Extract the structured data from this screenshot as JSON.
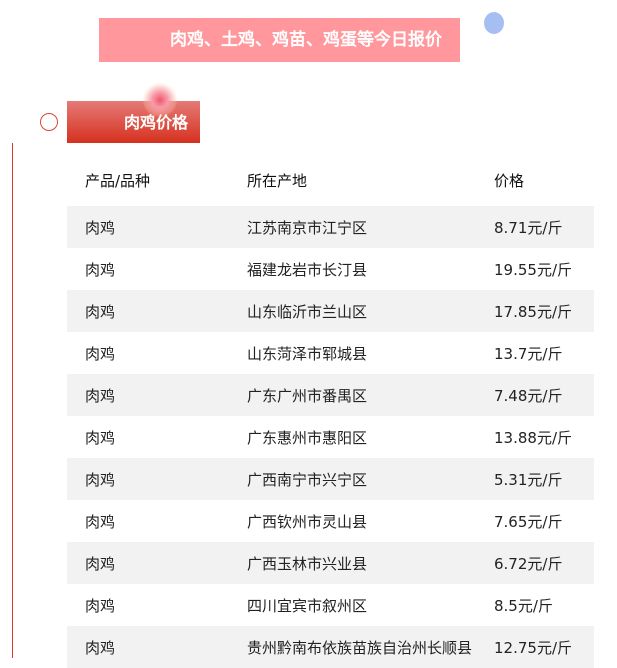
{
  "banner": {
    "title": "肉鸡、土鸡、鸡苗、鸡蛋等今日报价"
  },
  "section": {
    "title": "肉鸡价格"
  },
  "table": {
    "headers": [
      "产品/品种",
      "所在产地",
      "价格"
    ],
    "rows": [
      [
        "肉鸡",
        "江苏南京市江宁区",
        "8.71元/斤"
      ],
      [
        "肉鸡",
        "福建龙岩市长汀县",
        "19.55元/斤"
      ],
      [
        "肉鸡",
        "山东临沂市兰山区",
        "17.85元/斤"
      ],
      [
        "肉鸡",
        "山东菏泽市郓城县",
        "13.7元/斤"
      ],
      [
        "肉鸡",
        "广东广州市番禺区",
        "7.48元/斤"
      ],
      [
        "肉鸡",
        "广东惠州市惠阳区",
        "13.88元/斤"
      ],
      [
        "肉鸡",
        "广西南宁市兴宁区",
        "5.31元/斤"
      ],
      [
        "肉鸡",
        "广西钦州市灵山县",
        "7.65元/斤"
      ],
      [
        "肉鸡",
        "广西玉林市兴业县",
        "6.72元/斤"
      ],
      [
        "肉鸡",
        "四川宜宾市叙州区",
        "8.5元/斤"
      ],
      [
        "肉鸡",
        "贵州黔南布依族苗族自治州长顺县",
        "12.75元/斤"
      ]
    ]
  },
  "colors": {
    "banner": "#ff979d",
    "section": "#d6311f",
    "accent_line": "#d43b2e",
    "dot": "#a5bff3",
    "row_stripe": "#f2f2f2"
  }
}
